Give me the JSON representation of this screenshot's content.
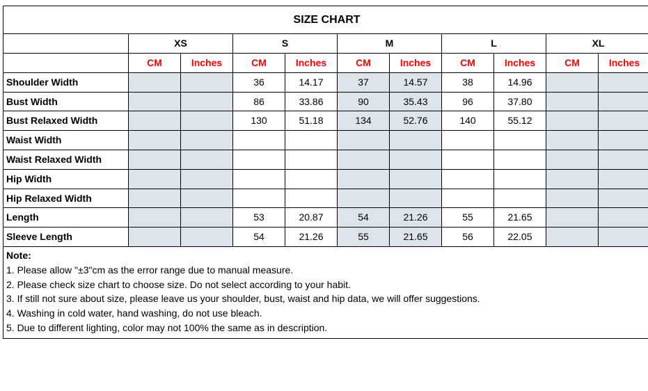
{
  "title": "SIZE CHART",
  "sizes": [
    "XS",
    "S",
    "M",
    "L",
    "XL"
  ],
  "units": [
    "CM",
    "Inches"
  ],
  "highlight_sizes": [
    "XS",
    "M",
    "XL"
  ],
  "colors": {
    "unit_header": "#ff0000",
    "highlight_bg": "#dde4eb",
    "border": "#000000",
    "background": "#ffffff"
  },
  "rows": [
    {
      "label": "Shoulder Width",
      "data": {
        "S": {
          "cm": "36",
          "in": "14.17"
        },
        "M": {
          "cm": "37",
          "in": "14.57"
        },
        "L": {
          "cm": "38",
          "in": "14.96"
        }
      }
    },
    {
      "label": "Bust Width",
      "data": {
        "S": {
          "cm": "86",
          "in": "33.86"
        },
        "M": {
          "cm": "90",
          "in": "35.43"
        },
        "L": {
          "cm": "96",
          "in": "37.80"
        }
      }
    },
    {
      "label": "Bust Relaxed Width",
      "data": {
        "S": {
          "cm": "130",
          "in": "51.18"
        },
        "M": {
          "cm": "134",
          "in": "52.76"
        },
        "L": {
          "cm": "140",
          "in": "55.12"
        }
      }
    },
    {
      "label": "Waist Width",
      "data": {}
    },
    {
      "label": "Waist Relaxed Width",
      "data": {}
    },
    {
      "label": "Hip Width",
      "data": {}
    },
    {
      "label": "Hip Relaxed Width",
      "data": {}
    },
    {
      "label": "Length",
      "data": {
        "S": {
          "cm": "53",
          "in": "20.87"
        },
        "M": {
          "cm": "54",
          "in": "21.26"
        },
        "L": {
          "cm": "55",
          "in": "21.65"
        }
      }
    },
    {
      "label": "Sleeve Length",
      "data": {
        "S": {
          "cm": "54",
          "in": "21.26"
        },
        "M": {
          "cm": "55",
          "in": "21.65"
        },
        "L": {
          "cm": "56",
          "in": "22.05"
        }
      }
    }
  ],
  "notes": {
    "header": "Note:",
    "lines": [
      "1. Please allow \"±3\"cm as the error range due to manual measure.",
      "2. Please check size chart to choose size. Do not select according to your habit.",
      "3. If still not sure about size, please leave us your shoulder, bust, waist and hip data, we will offer suggestions.",
      "4. Washing in cold water, hand washing, do not use bleach.",
      "5. Due to different lighting, color may not 100% the same as in description."
    ]
  }
}
